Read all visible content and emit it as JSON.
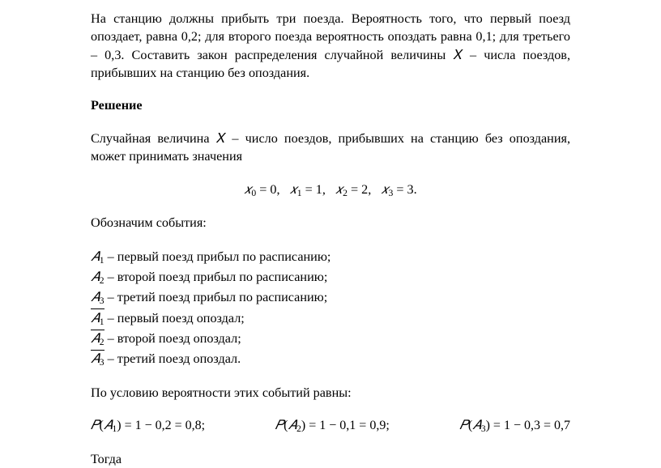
{
  "colors": {
    "text": "#000000",
    "background": "#ffffff"
  },
  "typography": {
    "font_family": "Times New Roman",
    "body_size_pt": 12,
    "math_font": "Cambria Math"
  },
  "problem": "На станцию должны прибыть три поезда. Вероятность того, что первый поезд опоздает, равна 0,2; для второго поезда вероятность опоздать равна 0,1; для третьего – 0,3. Составить закон распределения случайной величины 𝑋 – числа поездов, прибывших на станцию без опоздания.",
  "heading_solution": "Решение",
  "solution_intro": "Случайная величина 𝑋 – число поездов, прибывших на станцию без опоздания,  может принимать значения",
  "values_line": "𝑥₀ = 0,   𝑥₁ = 1,   𝑥₂ = 2,   𝑥₃ = 3.",
  "events_label": "Обозначим события:",
  "events": {
    "A1": {
      "sym": "𝐴",
      "sub": "1",
      "bar": false,
      "text": " – первый поезд прибыл по расписанию;"
    },
    "A2": {
      "sym": "𝐴",
      "sub": "2",
      "bar": false,
      "text": " – второй поезд прибыл по расписанию;"
    },
    "A3": {
      "sym": "𝐴",
      "sub": "3",
      "bar": false,
      "text": " – третий поезд прибыл по расписанию;"
    },
    "nA1": {
      "sym": "𝐴",
      "sub": "1",
      "bar": true,
      "text": " – первый поезд опоздал;"
    },
    "nA2": {
      "sym": "𝐴",
      "sub": "2",
      "bar": true,
      "text": " – второй поезд опоздал;"
    },
    "nA3": {
      "sym": "𝐴",
      "sub": "3",
      "bar": true,
      "text": " – третий поезд опоздал."
    }
  },
  "cond_line": "По условию вероятности этих событий равны:",
  "prob": {
    "p1": "𝑃(𝐴₁) = 1 − 0,2 = 0,8;",
    "p2": "𝑃(𝐴₂) = 1 − 0,1 = 0,9;",
    "p3": "𝑃(𝐴₃) = 1 − 0,3 = 0,7"
  },
  "then_word": "Тогда"
}
